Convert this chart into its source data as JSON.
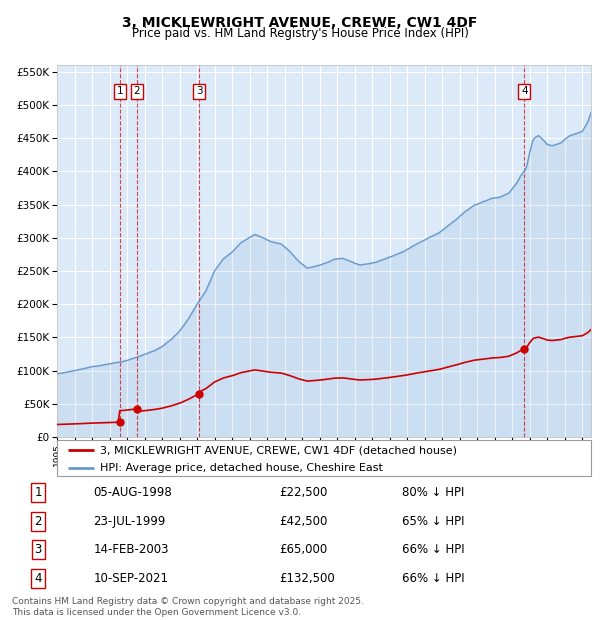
{
  "title": "3, MICKLEWRIGHT AVENUE, CREWE, CW1 4DF",
  "subtitle": "Price paid vs. HM Land Registry's House Price Index (HPI)",
  "legend_red": "3, MICKLEWRIGHT AVENUE, CREWE, CW1 4DF (detached house)",
  "legend_blue": "HPI: Average price, detached house, Cheshire East",
  "footer": "Contains HM Land Registry data © Crown copyright and database right 2025.\nThis data is licensed under the Open Government Licence v3.0.",
  "transactions": [
    {
      "num": 1,
      "date": "05-AUG-1998",
      "price": 22500,
      "year": 1998.59
    },
    {
      "num": 2,
      "date": "23-JUL-1999",
      "price": 42500,
      "year": 1999.55
    },
    {
      "num": 3,
      "date": "14-FEB-2003",
      "price": 65000,
      "year": 2003.12
    },
    {
      "num": 4,
      "date": "10-SEP-2021",
      "price": 132500,
      "year": 2021.69
    }
  ],
  "table_rows": [
    [
      "1",
      "05-AUG-1998",
      "£22,500",
      "80% ↓ HPI"
    ],
    [
      "2",
      "23-JUL-1999",
      "£42,500",
      "65% ↓ HPI"
    ],
    [
      "3",
      "14-FEB-2003",
      "£65,000",
      "66% ↓ HPI"
    ],
    [
      "4",
      "10-SEP-2021",
      "£132,500",
      "66% ↓ HPI"
    ]
  ],
  "ylim": [
    0,
    560000
  ],
  "yticks": [
    0,
    50000,
    100000,
    150000,
    200000,
    250000,
    300000,
    350000,
    400000,
    450000,
    500000,
    550000
  ],
  "xlim_start": 1995,
  "xlim_end": 2025.5,
  "background_color": "#dce9f8",
  "grid_color": "#ffffff",
  "red_color": "#cc0000",
  "blue_color": "#6699cc",
  "box_edgecolor": "#cc0000",
  "hpi_keypoints": [
    [
      1995.0,
      95000
    ],
    [
      1996.0,
      100000
    ],
    [
      1997.0,
      106000
    ],
    [
      1997.5,
      108000
    ],
    [
      1998.0,
      111000
    ],
    [
      1998.5,
      113000
    ],
    [
      1999.0,
      116000
    ],
    [
      1999.5,
      120000
    ],
    [
      2000.0,
      125000
    ],
    [
      2000.5,
      130000
    ],
    [
      2001.0,
      137000
    ],
    [
      2001.5,
      147000
    ],
    [
      2002.0,
      160000
    ],
    [
      2002.5,
      178000
    ],
    [
      2003.0,
      200000
    ],
    [
      2003.5,
      220000
    ],
    [
      2004.0,
      250000
    ],
    [
      2004.5,
      268000
    ],
    [
      2005.0,
      278000
    ],
    [
      2005.5,
      292000
    ],
    [
      2006.0,
      300000
    ],
    [
      2006.3,
      305000
    ],
    [
      2006.8,
      300000
    ],
    [
      2007.2,
      295000
    ],
    [
      2007.8,
      292000
    ],
    [
      2008.3,
      280000
    ],
    [
      2008.8,
      265000
    ],
    [
      2009.3,
      255000
    ],
    [
      2009.8,
      258000
    ],
    [
      2010.3,
      262000
    ],
    [
      2010.8,
      268000
    ],
    [
      2011.3,
      270000
    ],
    [
      2011.8,
      265000
    ],
    [
      2012.3,
      260000
    ],
    [
      2012.8,
      262000
    ],
    [
      2013.3,
      265000
    ],
    [
      2013.8,
      270000
    ],
    [
      2014.3,
      275000
    ],
    [
      2014.8,
      280000
    ],
    [
      2015.3,
      288000
    ],
    [
      2015.8,
      295000
    ],
    [
      2016.3,
      302000
    ],
    [
      2016.8,
      308000
    ],
    [
      2017.3,
      318000
    ],
    [
      2017.8,
      328000
    ],
    [
      2018.3,
      340000
    ],
    [
      2018.8,
      350000
    ],
    [
      2019.3,
      355000
    ],
    [
      2019.8,
      360000
    ],
    [
      2020.3,
      362000
    ],
    [
      2020.8,
      368000
    ],
    [
      2021.0,
      375000
    ],
    [
      2021.3,
      385000
    ],
    [
      2021.5,
      395000
    ],
    [
      2021.8,
      405000
    ],
    [
      2022.0,
      430000
    ],
    [
      2022.2,
      450000
    ],
    [
      2022.5,
      455000
    ],
    [
      2022.8,
      448000
    ],
    [
      2023.0,
      442000
    ],
    [
      2023.3,
      440000
    ],
    [
      2023.8,
      445000
    ],
    [
      2024.0,
      450000
    ],
    [
      2024.3,
      455000
    ],
    [
      2024.6,
      458000
    ],
    [
      2024.8,
      460000
    ],
    [
      2025.0,
      462000
    ],
    [
      2025.3,
      475000
    ],
    [
      2025.5,
      490000
    ]
  ]
}
